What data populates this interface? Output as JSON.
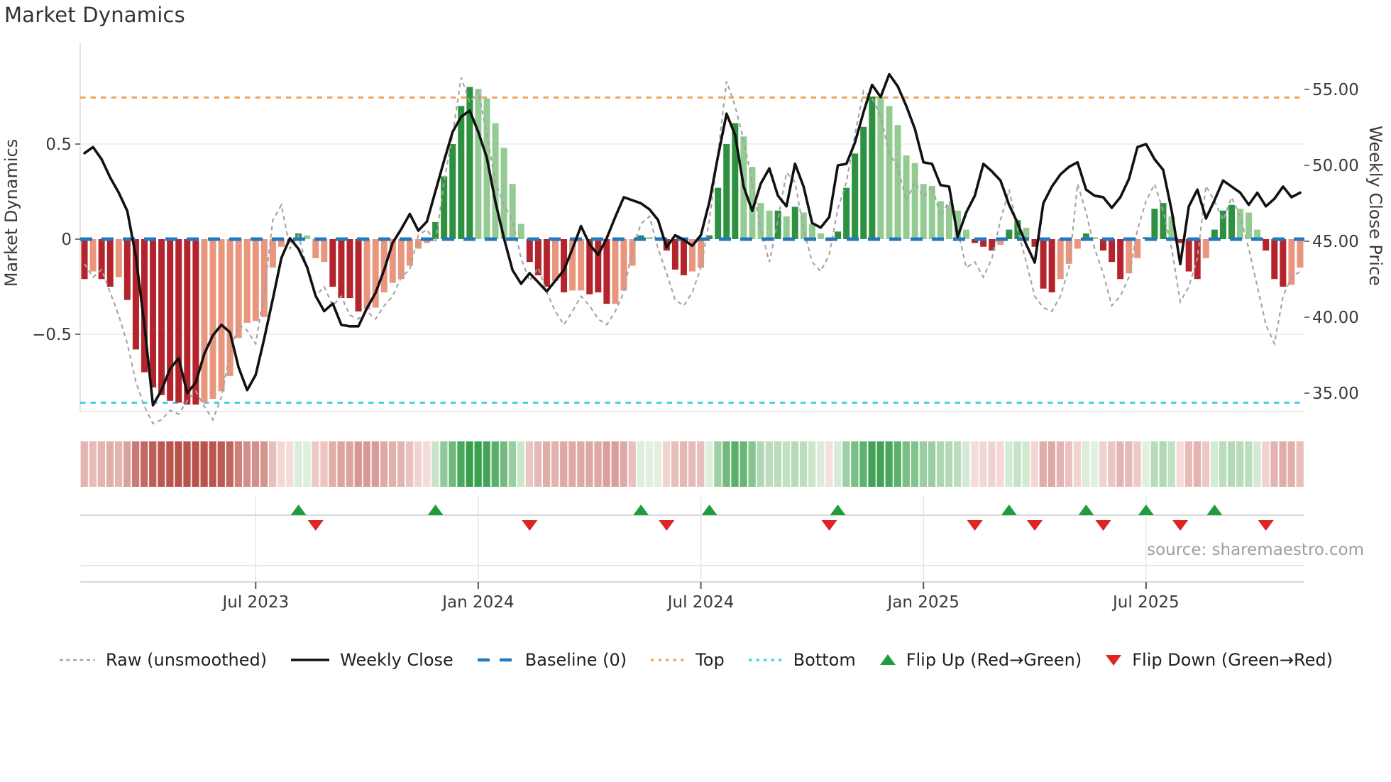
{
  "title": "Market Dynamics",
  "axes": {
    "left_label": "Market Dynamics",
    "right_label": "Weekly Close Price",
    "left_ticks": [
      "0.5",
      "0",
      "−0.5"
    ],
    "right_ticks": [
      "55.00",
      "50.00",
      "45.00",
      "40.00",
      "35.00"
    ],
    "x_ticks": [
      "Jul 2023",
      "Jan 2024",
      "Jul 2024",
      "Jan 2025",
      "Jul 2025"
    ]
  },
  "source_text": "source: sharemaestro.com",
  "legend": {
    "items": [
      {
        "label": "Raw (unsmoothed)",
        "type": "dashed-gray"
      },
      {
        "label": "Weekly Close",
        "type": "solid-black"
      },
      {
        "label": "Baseline (0)",
        "type": "dashed-blue"
      },
      {
        "label": "Top",
        "type": "dotted-orange"
      },
      {
        "label": "Bottom",
        "type": "dotted-cyan"
      },
      {
        "label": "Flip Up (Red→Green)",
        "type": "triangle-up-green"
      },
      {
        "label": "Flip Down (Green→Red)",
        "type": "triangle-down-red"
      }
    ]
  },
  "colors": {
    "bar_dark_red": "#b3242c",
    "bar_light_red": "#e9967f",
    "bar_dark_green": "#2e9140",
    "bar_light_green": "#93cb93",
    "weekly_close": "#111111",
    "raw": "#a3a3a3",
    "baseline": "#2478bd",
    "top": "#f2a45c",
    "bottom": "#48cfe2",
    "flip_up": "#1e9c3e",
    "flip_down": "#dd2525",
    "heat_red_dark": "#b64e46",
    "heat_red_pale": "#f8e3e1",
    "heat_green_dark": "#2f9b46",
    "heat_green_pale": "#e7f3e4",
    "grid": "#ececec",
    "spine": "#d9d9d9",
    "text": "#3a3a3a"
  },
  "chart_data": {
    "type": "bar",
    "subtype": "oscillator + price line combo, weekly",
    "title": "Market Dynamics",
    "xlabel": "",
    "ylabel_left": "Market Dynamics",
    "ylabel_right": "Weekly Close Price",
    "x_tick_labels": [
      "Jul 2023",
      "Jan 2024",
      "Jul 2024",
      "Jan 2025",
      "Jul 2025"
    ],
    "x_tick_weeks": [
      20,
      46,
      72,
      98,
      124
    ],
    "n_weeks": 143,
    "left_axis_ticks": [
      0.5,
      0,
      -0.5
    ],
    "right_axis_ticks": [
      55,
      50,
      45,
      40,
      35
    ],
    "baseline": 0,
    "top_line": 0.745,
    "bottom_line": -0.86,
    "grid": "horizontal at +0.5 / -0.5 only",
    "legend_position": "bottom center",
    "bar_values": [
      -0.21,
      -0.17,
      -0.21,
      -0.25,
      -0.2,
      -0.32,
      -0.58,
      -0.7,
      -0.78,
      -0.82,
      -0.85,
      -0.86,
      -0.87,
      -0.87,
      -0.86,
      -0.84,
      -0.8,
      -0.72,
      -0.52,
      -0.44,
      -0.43,
      -0.41,
      -0.15,
      -0.04,
      -0.02,
      0.03,
      0.02,
      -0.1,
      -0.12,
      -0.25,
      -0.31,
      -0.31,
      -0.38,
      -0.37,
      -0.36,
      -0.28,
      -0.23,
      -0.21,
      -0.14,
      -0.05,
      -0.02,
      0.09,
      0.33,
      0.5,
      0.7,
      0.8,
      0.79,
      0.74,
      0.61,
      0.48,
      0.29,
      0.08,
      -0.12,
      -0.19,
      -0.25,
      -0.22,
      -0.28,
      -0.27,
      -0.27,
      -0.29,
      -0.28,
      -0.34,
      -0.34,
      -0.27,
      -0.14,
      0.02,
      0.01,
      0.01,
      -0.06,
      -0.16,
      -0.19,
      -0.17,
      -0.15,
      0.02,
      0.27,
      0.5,
      0.61,
      0.54,
      0.38,
      0.19,
      0.15,
      0.15,
      0.12,
      0.17,
      0.14,
      0.08,
      0.03,
      -0.01,
      0.04,
      0.27,
      0.45,
      0.59,
      0.75,
      0.75,
      0.7,
      0.6,
      0.44,
      0.4,
      0.29,
      0.28,
      0.2,
      0.18,
      0.15,
      0.05,
      -0.02,
      -0.04,
      -0.06,
      -0.03,
      0.05,
      0.1,
      0.06,
      -0.04,
      -0.26,
      -0.28,
      -0.21,
      -0.13,
      -0.05,
      0.03,
      0.01,
      -0.06,
      -0.12,
      -0.21,
      -0.18,
      -0.1,
      0.01,
      0.16,
      0.19,
      0.12,
      -0.02,
      -0.17,
      -0.21,
      -0.1,
      0.05,
      0.15,
      0.18,
      0.16,
      0.14,
      0.05,
      -0.06,
      -0.21,
      -0.25,
      -0.24,
      -0.15
    ],
    "bar_colors": [
      "dr",
      "lr",
      "dr",
      "dr",
      "lr",
      "dr",
      "dr",
      "dr",
      "dr",
      "dr",
      "dr",
      "dr",
      "dr",
      "dr",
      "lr",
      "lr",
      "lr",
      "lr",
      "lr",
      "lr",
      "lr",
      "lr",
      "lr",
      "lr",
      "lr",
      "dg",
      "lg",
      "lr",
      "lr",
      "dr",
      "dr",
      "dr",
      "dr",
      "lr",
      "lr",
      "lr",
      "lr",
      "lr",
      "lr",
      "lr",
      "lr",
      "dg",
      "dg",
      "dg",
      "dg",
      "dg",
      "lg",
      "lg",
      "lg",
      "lg",
      "lg",
      "lg",
      "dr",
      "dr",
      "dr",
      "lr",
      "dr",
      "lr",
      "lr",
      "dr",
      "dr",
      "dr",
      "lr",
      "lr",
      "lr",
      "dg",
      "lg",
      "lg",
      "dr",
      "dr",
      "dr",
      "lr",
      "lr",
      "dg",
      "dg",
      "dg",
      "dg",
      "lg",
      "lg",
      "lg",
      "lg",
      "dg",
      "lg",
      "dg",
      "lg",
      "lg",
      "lg",
      "dr",
      "dg",
      "dg",
      "dg",
      "dg",
      "dg",
      "lg",
      "lg",
      "lg",
      "lg",
      "lg",
      "lg",
      "lg",
      "lg",
      "lg",
      "lg",
      "lg",
      "dr",
      "dr",
      "dr",
      "lr",
      "dg",
      "dg",
      "lg",
      "dr",
      "dr",
      "dr",
      "lr",
      "lr",
      "lr",
      "dg",
      "lg",
      "dr",
      "dr",
      "dr",
      "lr",
      "lr",
      "dg",
      "dg",
      "dg",
      "lg",
      "dr",
      "dr",
      "dr",
      "lr",
      "dg",
      "dg",
      "dg",
      "lg",
      "lg",
      "lg",
      "dr",
      "dr",
      "dr",
      "lr",
      "lr"
    ],
    "raw_values": [
      -0.13,
      -0.2,
      -0.16,
      -0.28,
      -0.4,
      -0.55,
      -0.75,
      -0.88,
      -0.97,
      -0.95,
      -0.9,
      -0.92,
      -0.85,
      -0.8,
      -0.88,
      -0.95,
      -0.83,
      -0.6,
      -0.45,
      -0.48,
      -0.55,
      -0.28,
      0.1,
      0.18,
      -0.05,
      0.02,
      -0.15,
      -0.3,
      -0.25,
      -0.35,
      -0.3,
      -0.4,
      -0.42,
      -0.38,
      -0.42,
      -0.35,
      -0.3,
      -0.2,
      -0.16,
      0.02,
      0.05,
      -0.02,
      0.3,
      0.55,
      0.85,
      0.72,
      0.78,
      0.55,
      0.3,
      0.18,
      0.1,
      -0.1,
      -0.22,
      -0.15,
      -0.28,
      -0.38,
      -0.45,
      -0.38,
      -0.3,
      -0.35,
      -0.42,
      -0.45,
      -0.38,
      -0.28,
      -0.05,
      0.08,
      0.12,
      -0.05,
      -0.18,
      -0.32,
      -0.35,
      -0.28,
      -0.15,
      0.1,
      0.45,
      0.83,
      0.7,
      0.52,
      0.3,
      0.05,
      -0.12,
      0.1,
      0.35,
      0.3,
      0.05,
      -0.12,
      -0.17,
      -0.08,
      0.16,
      0.3,
      0.55,
      0.78,
      0.74,
      0.65,
      0.45,
      0.38,
      0.2,
      0.3,
      0.22,
      0.28,
      0.12,
      0.2,
      0.05,
      -0.15,
      -0.12,
      -0.2,
      -0.1,
      0.1,
      0.26,
      0.05,
      -0.12,
      -0.3,
      -0.36,
      -0.38,
      -0.3,
      -0.15,
      0.29,
      0.14,
      -0.05,
      -0.18,
      -0.35,
      -0.3,
      -0.2,
      0.05,
      0.2,
      0.29,
      0.15,
      -0.05,
      -0.33,
      -0.25,
      -0.1,
      0.28,
      0.2,
      0.1,
      0.22,
      0.12,
      -0.05,
      -0.25,
      -0.45,
      -0.55,
      -0.3,
      -0.2,
      -0.17
    ],
    "weekly_close_values": [
      50.8,
      51.2,
      50.4,
      49.2,
      48.2,
      47.0,
      44.0,
      39.5,
      34.2,
      35.2,
      36.6,
      37.3,
      35.0,
      35.7,
      37.6,
      38.8,
      39.5,
      39.0,
      36.7,
      35.2,
      36.2,
      38.6,
      41.2,
      43.9,
      45.2,
      44.5,
      43.3,
      41.4,
      40.4,
      40.9,
      39.5,
      39.4,
      39.4,
      40.6,
      41.6,
      43.1,
      44.9,
      45.8,
      46.8,
      45.7,
      46.3,
      48.3,
      50.3,
      52.2,
      53.2,
      53.6,
      52.2,
      50.5,
      47.6,
      45.2,
      43.1,
      42.2,
      42.9,
      42.3,
      41.7,
      42.4,
      43.1,
      44.5,
      46.0,
      44.8,
      44.1,
      45.2,
      46.6,
      47.9,
      47.7,
      47.5,
      47.1,
      46.4,
      44.6,
      45.4,
      45.1,
      44.7,
      45.4,
      47.6,
      50.6,
      53.4,
      52.0,
      48.6,
      47.0,
      48.8,
      49.8,
      48.0,
      47.3,
      50.1,
      48.6,
      46.2,
      45.9,
      46.6,
      50.0,
      50.1,
      51.5,
      53.5,
      55.3,
      54.5,
      56.0,
      55.2,
      53.9,
      52.4,
      50.2,
      50.1,
      48.7,
      48.6,
      45.3,
      46.9,
      48.0,
      50.1,
      49.6,
      49.0,
      47.4,
      46.2,
      44.8,
      43.6,
      47.5,
      48.6,
      49.4,
      49.9,
      50.2,
      48.4,
      48.0,
      47.9,
      47.2,
      47.9,
      49.1,
      51.2,
      51.4,
      50.4,
      49.7,
      47.0,
      43.5,
      47.3,
      48.4,
      46.5,
      47.7,
      49.0,
      48.6,
      48.2,
      47.4,
      48.2,
      47.3,
      47.8,
      48.6,
      47.9,
      48.2
    ],
    "flip_up_weeks": [
      25,
      41,
      65,
      73,
      88,
      108,
      117,
      124,
      132
    ],
    "flip_down_weeks": [
      27,
      52,
      68,
      87,
      104,
      111,
      119,
      128,
      138
    ],
    "heatmap": "strip below chart mirrors bar sign/magnitude (red negative, green positive)"
  }
}
